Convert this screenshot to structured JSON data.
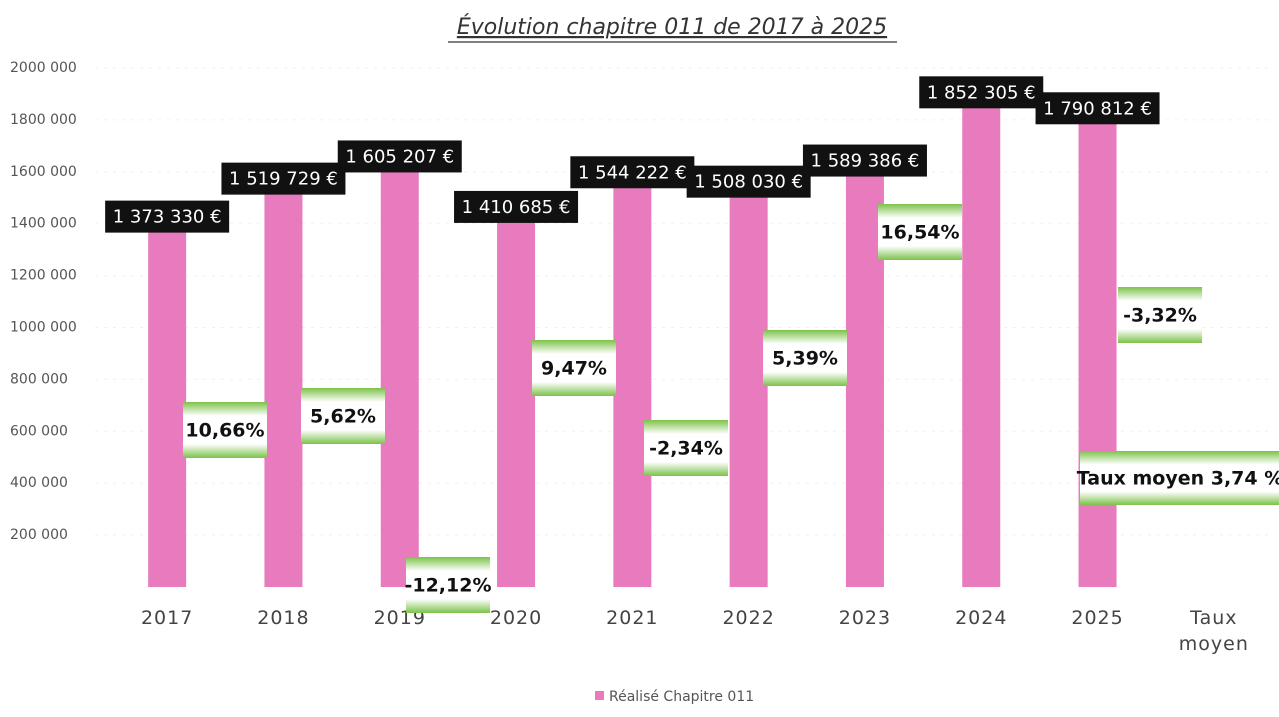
{
  "chart_data": {
    "type": "bar",
    "title": "Évolution chapitre 011 de 2017 à 2025",
    "categories": [
      "2017",
      "2018",
      "2019",
      "2020",
      "2021",
      "2022",
      "2023",
      "2024",
      "2025",
      "Taux moyen"
    ],
    "series": [
      {
        "name": "Réalisé Chapitre 011",
        "color": "#e87bbd",
        "values": [
          1373330,
          1519729,
          1605207,
          1410685,
          1544222,
          1508030,
          1589386,
          1852305,
          1790812,
          null
        ],
        "value_labels": [
          "1 373 330 €",
          "1 519 729 €",
          "1 605 207 €",
          "1 410 685 €",
          "1 544 222 €",
          "1 508 030 €",
          "1 589 386 €",
          "1 852 305 €",
          "1 790 812 €",
          null
        ]
      }
    ],
    "annotations": [
      "10,66%",
      "5,62%",
      "-12,12%",
      "9,47%",
      "-2,34%",
      "5,39%",
      "16,54%",
      "-3,32%"
    ],
    "average_label": "Taux moyen 3,74 %",
    "ylim": [
      0,
      2000000
    ],
    "yticks": [
      {
        "value": 200000,
        "label": "200 000"
      },
      {
        "value": 400000,
        "label": "400 000"
      },
      {
        "value": 600000,
        "label": "600 000"
      },
      {
        "value": 800000,
        "label": "800 000"
      },
      {
        "value": 1000000,
        "label": "1000 000"
      },
      {
        "value": 1200000,
        "label": "1200 000"
      },
      {
        "value": 1400000,
        "label": "1400 000"
      },
      {
        "value": 1600000,
        "label": "1600 000"
      },
      {
        "value": 1800000,
        "label": "1800 000"
      },
      {
        "value": 2000000,
        "label": "2000 000"
      }
    ],
    "grid": true
  }
}
